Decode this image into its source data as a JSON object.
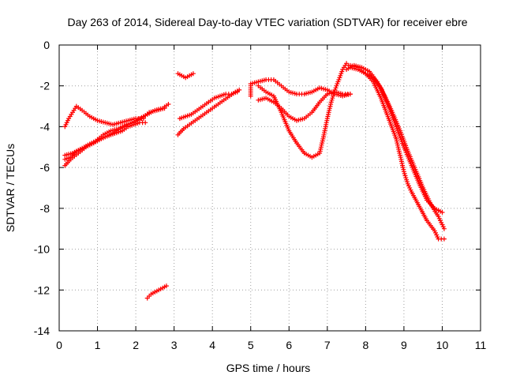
{
  "chart_data": {
    "type": "scatter",
    "title": "Day 263 of 2014, Sidereal Day-to-day VTEC variation (SDTVAR) for receiver ebre",
    "xlabel": "GPS time / hours",
    "ylabel": "SDTVAR / TECUs",
    "xlim": [
      0,
      11
    ],
    "ylim": [
      -14,
      0
    ],
    "xticks": [
      0,
      1,
      2,
      3,
      4,
      5,
      6,
      7,
      8,
      9,
      10,
      11
    ],
    "yticks": [
      0,
      -2,
      -4,
      -6,
      -8,
      -10,
      -12,
      -14
    ],
    "grid": true,
    "marker": "plus",
    "color": "#ff0000",
    "series": [
      {
        "name": "track-a",
        "points": [
          [
            0.15,
            -5.9
          ],
          [
            0.3,
            -5.6
          ],
          [
            0.5,
            -5.3
          ],
          [
            0.7,
            -5.0
          ],
          [
            0.9,
            -4.8
          ],
          [
            1.1,
            -4.6
          ],
          [
            1.3,
            -4.4
          ],
          [
            1.5,
            -4.2
          ],
          [
            1.7,
            -4.0
          ],
          [
            1.9,
            -3.8
          ],
          [
            2.1,
            -3.6
          ],
          [
            2.3,
            -3.4
          ],
          [
            2.5,
            -3.2
          ],
          [
            2.7,
            -3.1
          ],
          [
            2.85,
            -2.9
          ]
        ]
      },
      {
        "name": "track-b",
        "points": [
          [
            0.15,
            -5.4
          ],
          [
            0.35,
            -5.3
          ],
          [
            0.55,
            -5.1
          ],
          [
            0.75,
            -4.9
          ],
          [
            0.95,
            -4.7
          ],
          [
            1.15,
            -4.4
          ],
          [
            1.35,
            -4.2
          ],
          [
            1.55,
            -4.1
          ],
          [
            1.75,
            -3.9
          ],
          [
            1.95,
            -3.8
          ],
          [
            2.15,
            -3.6
          ],
          [
            2.35,
            -3.3
          ],
          [
            2.55,
            -3.2
          ],
          [
            2.75,
            -3.1
          ]
        ]
      },
      {
        "name": "track-c",
        "points": [
          [
            0.15,
            -4.0
          ],
          [
            0.25,
            -3.6
          ],
          [
            0.35,
            -3.3
          ],
          [
            0.45,
            -3.0
          ],
          [
            0.6,
            -3.2
          ],
          [
            0.8,
            -3.5
          ],
          [
            1.0,
            -3.7
          ],
          [
            1.2,
            -3.8
          ],
          [
            1.4,
            -3.9
          ],
          [
            1.6,
            -3.8
          ],
          [
            1.8,
            -3.7
          ],
          [
            2.0,
            -3.6
          ],
          [
            2.2,
            -3.6
          ]
        ]
      },
      {
        "name": "track-d",
        "points": [
          [
            0.15,
            -5.6
          ],
          [
            0.3,
            -5.5
          ],
          [
            0.45,
            -5.2
          ],
          [
            0.6,
            -5.1
          ],
          [
            0.75,
            -4.9
          ],
          [
            0.9,
            -4.8
          ],
          [
            1.05,
            -4.6
          ],
          [
            1.2,
            -4.5
          ],
          [
            1.35,
            -4.4
          ],
          [
            1.5,
            -4.3
          ],
          [
            1.65,
            -4.2
          ],
          [
            1.8,
            -4.0
          ],
          [
            1.95,
            -3.9
          ],
          [
            2.1,
            -3.8
          ],
          [
            2.25,
            -3.8
          ]
        ]
      },
      {
        "name": "track-e",
        "points": [
          [
            2.3,
            -12.4
          ],
          [
            2.4,
            -12.2
          ],
          [
            2.5,
            -12.1
          ],
          [
            2.6,
            -12.0
          ],
          [
            2.7,
            -11.9
          ],
          [
            2.8,
            -11.8
          ]
        ]
      },
      {
        "name": "track-f",
        "points": [
          [
            3.1,
            -1.4
          ],
          [
            3.2,
            -1.5
          ],
          [
            3.3,
            -1.6
          ],
          [
            3.4,
            -1.5
          ],
          [
            3.5,
            -1.4
          ]
        ]
      },
      {
        "name": "track-g",
        "points": [
          [
            3.1,
            -4.4
          ],
          [
            3.25,
            -4.1
          ],
          [
            3.4,
            -3.9
          ],
          [
            3.55,
            -3.7
          ],
          [
            3.7,
            -3.5
          ],
          [
            3.85,
            -3.3
          ],
          [
            4.0,
            -3.1
          ],
          [
            4.15,
            -2.9
          ],
          [
            4.3,
            -2.7
          ],
          [
            4.45,
            -2.5
          ],
          [
            4.6,
            -2.3
          ],
          [
            4.7,
            -2.2
          ]
        ]
      },
      {
        "name": "track-h",
        "points": [
          [
            3.15,
            -3.6
          ],
          [
            3.3,
            -3.5
          ],
          [
            3.45,
            -3.4
          ],
          [
            3.6,
            -3.2
          ],
          [
            3.75,
            -3.0
          ],
          [
            3.9,
            -2.8
          ],
          [
            4.05,
            -2.6
          ],
          [
            4.2,
            -2.5
          ],
          [
            4.35,
            -2.4
          ],
          [
            4.5,
            -2.4
          ],
          [
            4.65,
            -2.3
          ]
        ]
      },
      {
        "name": "track-i",
        "points": [
          [
            5.0,
            -2.5
          ],
          [
            5.0,
            -1.9
          ],
          [
            5.2,
            -1.8
          ],
          [
            5.4,
            -1.7
          ],
          [
            5.6,
            -1.7
          ],
          [
            5.8,
            -2.0
          ],
          [
            6.0,
            -2.3
          ],
          [
            6.2,
            -2.4
          ],
          [
            6.4,
            -2.4
          ],
          [
            6.6,
            -2.3
          ],
          [
            6.8,
            -2.1
          ],
          [
            7.0,
            -2.2
          ],
          [
            7.2,
            -2.4
          ],
          [
            7.4,
            -2.5
          ],
          [
            7.6,
            -2.4
          ]
        ]
      },
      {
        "name": "track-j",
        "points": [
          [
            5.2,
            -2.7
          ],
          [
            5.4,
            -2.6
          ],
          [
            5.6,
            -2.8
          ],
          [
            5.8,
            -3.1
          ],
          [
            6.0,
            -3.5
          ],
          [
            6.2,
            -3.7
          ],
          [
            6.4,
            -3.6
          ],
          [
            6.6,
            -3.3
          ],
          [
            6.8,
            -2.8
          ],
          [
            7.0,
            -2.4
          ],
          [
            7.2,
            -2.3
          ],
          [
            7.4,
            -2.4
          ],
          [
            7.6,
            -2.4
          ]
        ]
      },
      {
        "name": "track-k",
        "points": [
          [
            5.2,
            -2.0
          ],
          [
            5.4,
            -2.3
          ],
          [
            5.6,
            -2.5
          ],
          [
            5.8,
            -3.3
          ],
          [
            6.0,
            -4.2
          ],
          [
            6.2,
            -4.8
          ],
          [
            6.4,
            -5.3
          ],
          [
            6.6,
            -5.5
          ],
          [
            6.8,
            -5.3
          ],
          [
            6.9,
            -4.5
          ],
          [
            7.0,
            -3.6
          ],
          [
            7.1,
            -2.8
          ],
          [
            7.2,
            -2.2
          ],
          [
            7.3,
            -1.7
          ],
          [
            7.4,
            -1.2
          ],
          [
            7.5,
            -0.9
          ],
          [
            7.6,
            -1.1
          ],
          [
            7.8,
            -1.2
          ],
          [
            8.0,
            -1.4
          ],
          [
            8.2,
            -1.6
          ],
          [
            8.4,
            -2.1
          ],
          [
            8.6,
            -3.0
          ],
          [
            8.8,
            -4.0
          ],
          [
            9.0,
            -5.0
          ],
          [
            9.2,
            -5.9
          ],
          [
            9.4,
            -6.8
          ],
          [
            9.6,
            -7.6
          ],
          [
            9.8,
            -8.0
          ],
          [
            10.0,
            -8.2
          ]
        ]
      },
      {
        "name": "track-l",
        "points": [
          [
            7.5,
            -1.2
          ],
          [
            7.7,
            -1.0
          ],
          [
            7.9,
            -1.1
          ],
          [
            8.1,
            -1.3
          ],
          [
            8.3,
            -1.8
          ],
          [
            8.5,
            -2.5
          ],
          [
            8.7,
            -3.3
          ],
          [
            8.9,
            -4.2
          ],
          [
            9.1,
            -5.2
          ],
          [
            9.3,
            -6.1
          ],
          [
            9.5,
            -7.0
          ],
          [
            9.7,
            -7.8
          ],
          [
            9.9,
            -8.4
          ],
          [
            10.05,
            -9.0
          ]
        ]
      },
      {
        "name": "track-m",
        "points": [
          [
            7.6,
            -1.0
          ],
          [
            7.8,
            -1.1
          ],
          [
            8.0,
            -1.4
          ],
          [
            8.2,
            -1.8
          ],
          [
            8.4,
            -2.6
          ],
          [
            8.6,
            -3.6
          ],
          [
            8.8,
            -4.6
          ],
          [
            8.9,
            -5.4
          ],
          [
            9.0,
            -6.2
          ],
          [
            9.1,
            -6.8
          ],
          [
            9.2,
            -7.2
          ],
          [
            9.4,
            -7.9
          ],
          [
            9.6,
            -8.6
          ],
          [
            9.8,
            -9.1
          ],
          [
            9.9,
            -9.5
          ],
          [
            10.05,
            -9.5
          ]
        ]
      }
    ]
  }
}
